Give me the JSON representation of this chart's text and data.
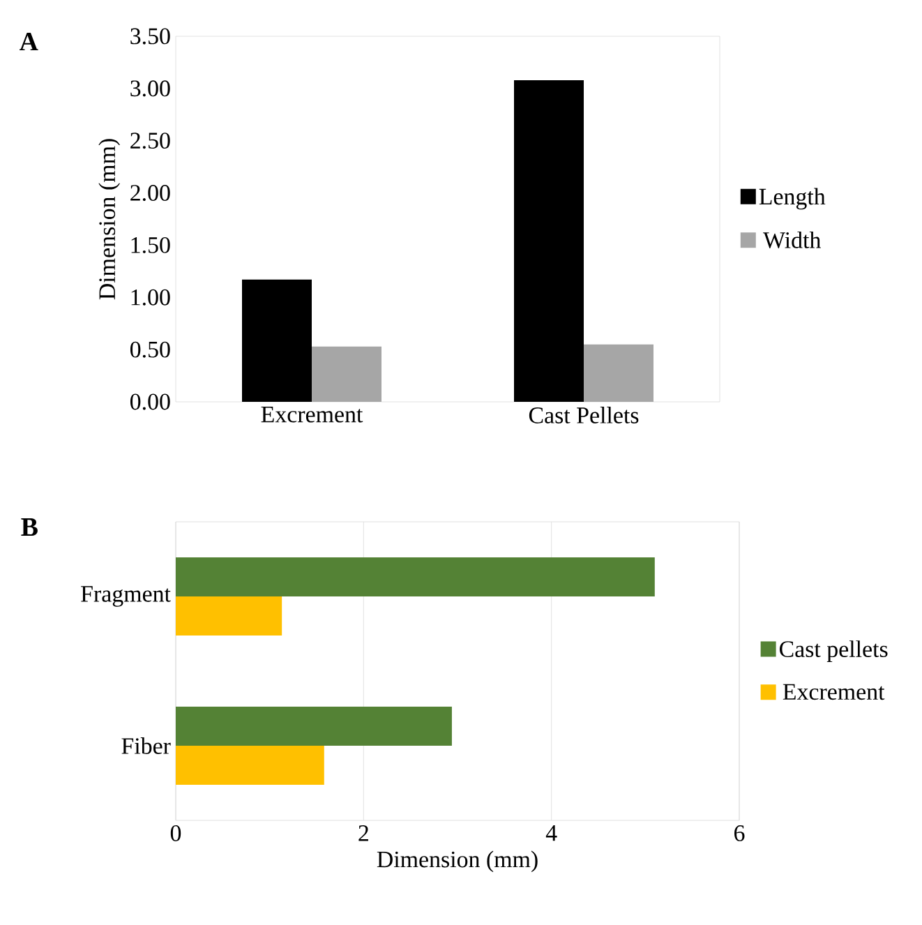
{
  "chart_data": [
    {
      "type": "bar",
      "title": "A",
      "ylabel": "Dimension (mm)",
      "categories": [
        "Excrement",
        "Cast Pellets"
      ],
      "series": [
        {
          "name": "Length",
          "color": "#000000",
          "values": [
            1.17,
            3.08
          ]
        },
        {
          "name": "Width",
          "color": "#a6a6a6",
          "values": [
            0.53,
            0.55
          ]
        }
      ],
      "ylim": [
        0,
        3.5
      ],
      "yticks": [
        {
          "value": 0,
          "label": "0.00"
        },
        {
          "value": 0.5,
          "label": "0.50"
        },
        {
          "value": 1,
          "label": "1.00"
        },
        {
          "value": 1.5,
          "label": "1.50"
        },
        {
          "value": 2,
          "label": "2.00"
        },
        {
          "value": 2.5,
          "label": "2.50"
        },
        {
          "value": 3,
          "label": "3.00"
        },
        {
          "value": 3.5,
          "label": "3.50"
        }
      ],
      "legend": "right"
    },
    {
      "type": "bar",
      "orientation": "horizontal",
      "title": "B",
      "xlabel": "Dimension (mm)",
      "categories": [
        "Fragment",
        "Fiber"
      ],
      "series": [
        {
          "name": "Cast pellets",
          "color": "#548235",
          "values": [
            5.1,
            2.94
          ]
        },
        {
          "name": "Excrement",
          "color": "#ffc000",
          "values": [
            1.13,
            1.58
          ]
        }
      ],
      "xlim": [
        0,
        6
      ],
      "xticks": [
        0,
        2,
        4,
        6
      ],
      "grid": "x",
      "legend": "right"
    }
  ]
}
